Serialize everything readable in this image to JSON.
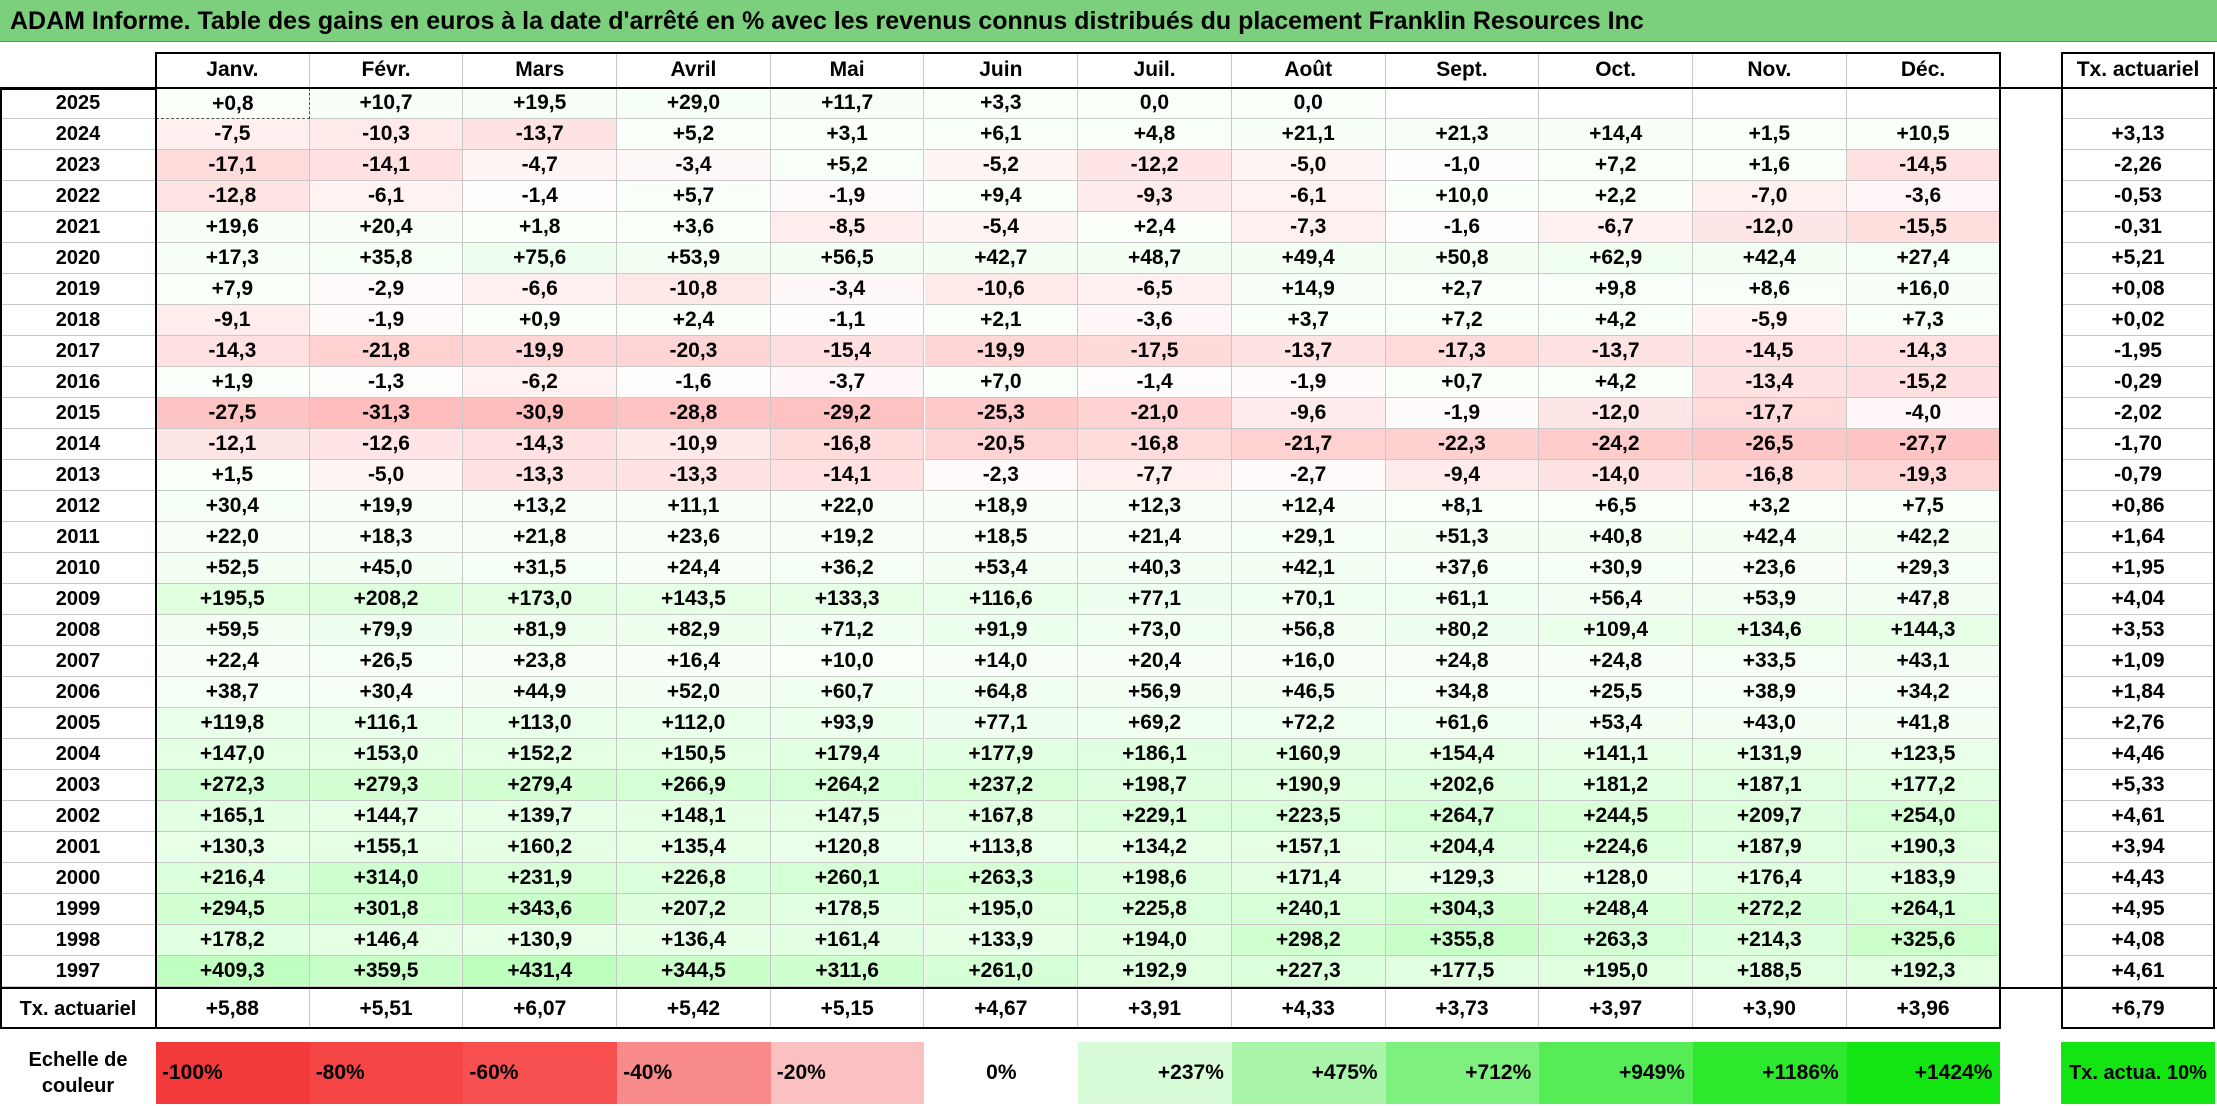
{
  "title": "ADAM Informe. Table des gains en euros à la date d'arrêté en % avec les revenus connus distribués du placement Franklin Resources Inc",
  "chart_data": {
    "type": "table",
    "columns": [
      "Janv.",
      "Févr.",
      "Mars",
      "Avril",
      "Mai",
      "Juin",
      "Juil.",
      "Août",
      "Sept.",
      "Oct.",
      "Nov.",
      "Déc."
    ],
    "rate_header": "Tx. actuariel",
    "rows": [
      {
        "year": "2025",
        "values": [
          "+0,8",
          "+10,7",
          "+19,5",
          "+29,0",
          "+11,7",
          "+3,3",
          "0,0",
          "0,0",
          "",
          "",
          "",
          ""
        ],
        "rate": ""
      },
      {
        "year": "2024",
        "values": [
          "-7,5",
          "-10,3",
          "-13,7",
          "+5,2",
          "+3,1",
          "+6,1",
          "+4,8",
          "+21,1",
          "+21,3",
          "+14,4",
          "+1,5",
          "+10,5"
        ],
        "rate": "+3,13"
      },
      {
        "year": "2023",
        "values": [
          "-17,1",
          "-14,1",
          "-4,7",
          "-3,4",
          "+5,2",
          "-5,2",
          "-12,2",
          "-5,0",
          "-1,0",
          "+7,2",
          "+1,6",
          "-14,5"
        ],
        "rate": "-2,26"
      },
      {
        "year": "2022",
        "values": [
          "-12,8",
          "-6,1",
          "-1,4",
          "+5,7",
          "-1,9",
          "+9,4",
          "-9,3",
          "-6,1",
          "+10,0",
          "+2,2",
          "-7,0",
          "-3,6"
        ],
        "rate": "-0,53"
      },
      {
        "year": "2021",
        "values": [
          "+19,6",
          "+20,4",
          "+1,8",
          "+3,6",
          "-8,5",
          "-5,4",
          "+2,4",
          "-7,3",
          "-1,6",
          "-6,7",
          "-12,0",
          "-15,5"
        ],
        "rate": "-0,31"
      },
      {
        "year": "2020",
        "values": [
          "+17,3",
          "+35,8",
          "+75,6",
          "+53,9",
          "+56,5",
          "+42,7",
          "+48,7",
          "+49,4",
          "+50,8",
          "+62,9",
          "+42,4",
          "+27,4"
        ],
        "rate": "+5,21"
      },
      {
        "year": "2019",
        "values": [
          "+7,9",
          "-2,9",
          "-6,6",
          "-10,8",
          "-3,4",
          "-10,6",
          "-6,5",
          "+14,9",
          "+2,7",
          "+9,8",
          "+8,6",
          "+16,0"
        ],
        "rate": "+0,08"
      },
      {
        "year": "2018",
        "values": [
          "-9,1",
          "-1,9",
          "+0,9",
          "+2,4",
          "-1,1",
          "+2,1",
          "-3,6",
          "+3,7",
          "+7,2",
          "+4,2",
          "-5,9",
          "+7,3"
        ],
        "rate": "+0,02"
      },
      {
        "year": "2017",
        "values": [
          "-14,3",
          "-21,8",
          "-19,9",
          "-20,3",
          "-15,4",
          "-19,9",
          "-17,5",
          "-13,7",
          "-17,3",
          "-13,7",
          "-14,5",
          "-14,3"
        ],
        "rate": "-1,95"
      },
      {
        "year": "2016",
        "values": [
          "+1,9",
          "-1,3",
          "-6,2",
          "-1,6",
          "-3,7",
          "+7,0",
          "-1,4",
          "-1,9",
          "+0,7",
          "+4,2",
          "-13,4",
          "-15,2"
        ],
        "rate": "-0,29"
      },
      {
        "year": "2015",
        "values": [
          "-27,5",
          "-31,3",
          "-30,9",
          "-28,8",
          "-29,2",
          "-25,3",
          "-21,0",
          "-9,6",
          "-1,9",
          "-12,0",
          "-17,7",
          "-4,0"
        ],
        "rate": "-2,02"
      },
      {
        "year": "2014",
        "values": [
          "-12,1",
          "-12,6",
          "-14,3",
          "-10,9",
          "-16,8",
          "-20,5",
          "-16,8",
          "-21,7",
          "-22,3",
          "-24,2",
          "-26,5",
          "-27,7"
        ],
        "rate": "-1,70"
      },
      {
        "year": "2013",
        "values": [
          "+1,5",
          "-5,0",
          "-13,3",
          "-13,3",
          "-14,1",
          "-2,3",
          "-7,7",
          "-2,7",
          "-9,4",
          "-14,0",
          "-16,8",
          "-19,3"
        ],
        "rate": "-0,79"
      },
      {
        "year": "2012",
        "values": [
          "+30,4",
          "+19,9",
          "+13,2",
          "+11,1",
          "+22,0",
          "+18,9",
          "+12,3",
          "+12,4",
          "+8,1",
          "+6,5",
          "+3,2",
          "+7,5"
        ],
        "rate": "+0,86"
      },
      {
        "year": "2011",
        "values": [
          "+22,0",
          "+18,3",
          "+21,8",
          "+23,6",
          "+19,2",
          "+18,5",
          "+21,4",
          "+29,1",
          "+51,3",
          "+40,8",
          "+42,4",
          "+42,2"
        ],
        "rate": "+1,64"
      },
      {
        "year": "2010",
        "values": [
          "+52,5",
          "+45,0",
          "+31,5",
          "+24,4",
          "+36,2",
          "+53,4",
          "+40,3",
          "+42,1",
          "+37,6",
          "+30,9",
          "+23,6",
          "+29,3"
        ],
        "rate": "+1,95"
      },
      {
        "year": "2009",
        "values": [
          "+195,5",
          "+208,2",
          "+173,0",
          "+143,5",
          "+133,3",
          "+116,6",
          "+77,1",
          "+70,1",
          "+61,1",
          "+56,4",
          "+53,9",
          "+47,8"
        ],
        "rate": "+4,04"
      },
      {
        "year": "2008",
        "values": [
          "+59,5",
          "+79,9",
          "+81,9",
          "+82,9",
          "+71,2",
          "+91,9",
          "+73,0",
          "+56,8",
          "+80,2",
          "+109,4",
          "+134,6",
          "+144,3"
        ],
        "rate": "+3,53"
      },
      {
        "year": "2007",
        "values": [
          "+22,4",
          "+26,5",
          "+23,8",
          "+16,4",
          "+10,0",
          "+14,0",
          "+20,4",
          "+16,0",
          "+24,8",
          "+24,8",
          "+33,5",
          "+43,1"
        ],
        "rate": "+1,09"
      },
      {
        "year": "2006",
        "values": [
          "+38,7",
          "+30,4",
          "+44,9",
          "+52,0",
          "+60,7",
          "+64,8",
          "+56,9",
          "+46,5",
          "+34,8",
          "+25,5",
          "+38,9",
          "+34,2"
        ],
        "rate": "+1,84"
      },
      {
        "year": "2005",
        "values": [
          "+119,8",
          "+116,1",
          "+113,0",
          "+112,0",
          "+93,9",
          "+77,1",
          "+69,2",
          "+72,2",
          "+61,6",
          "+53,4",
          "+43,0",
          "+41,8"
        ],
        "rate": "+2,76"
      },
      {
        "year": "2004",
        "values": [
          "+147,0",
          "+153,0",
          "+152,2",
          "+150,5",
          "+179,4",
          "+177,9",
          "+186,1",
          "+160,9",
          "+154,4",
          "+141,1",
          "+131,9",
          "+123,5"
        ],
        "rate": "+4,46"
      },
      {
        "year": "2003",
        "values": [
          "+272,3",
          "+279,3",
          "+279,4",
          "+266,9",
          "+264,2",
          "+237,2",
          "+198,7",
          "+190,9",
          "+202,6",
          "+181,2",
          "+187,1",
          "+177,2"
        ],
        "rate": "+5,33"
      },
      {
        "year": "2002",
        "values": [
          "+165,1",
          "+144,7",
          "+139,7",
          "+148,1",
          "+147,5",
          "+167,8",
          "+229,1",
          "+223,5",
          "+264,7",
          "+244,5",
          "+209,7",
          "+254,0"
        ],
        "rate": "+4,61"
      },
      {
        "year": "2001",
        "values": [
          "+130,3",
          "+155,1",
          "+160,2",
          "+135,4",
          "+120,8",
          "+113,8",
          "+134,2",
          "+157,1",
          "+204,4",
          "+224,6",
          "+187,9",
          "+190,3"
        ],
        "rate": "+3,94"
      },
      {
        "year": "2000",
        "values": [
          "+216,4",
          "+314,0",
          "+231,9",
          "+226,8",
          "+260,1",
          "+263,3",
          "+198,6",
          "+171,4",
          "+129,3",
          "+128,0",
          "+176,4",
          "+183,9"
        ],
        "rate": "+4,43"
      },
      {
        "year": "1999",
        "values": [
          "+294,5",
          "+301,8",
          "+343,6",
          "+207,2",
          "+178,5",
          "+195,0",
          "+225,8",
          "+240,1",
          "+304,3",
          "+248,4",
          "+272,2",
          "+264,1"
        ],
        "rate": "+4,95"
      },
      {
        "year": "1998",
        "values": [
          "+178,2",
          "+146,4",
          "+130,9",
          "+136,4",
          "+161,4",
          "+133,9",
          "+194,0",
          "+298,2",
          "+355,8",
          "+263,3",
          "+214,3",
          "+325,6"
        ],
        "rate": "+4,08"
      },
      {
        "year": "1997",
        "values": [
          "+409,3",
          "+359,5",
          "+431,4",
          "+344,5",
          "+311,6",
          "+261,0",
          "+192,9",
          "+227,3",
          "+177,5",
          "+195,0",
          "+188,5",
          "+192,3"
        ],
        "rate": "+4,61"
      }
    ],
    "summary": {
      "label": "Tx. actuariel",
      "values": [
        "+5,88",
        "+5,51",
        "+6,07",
        "+5,42",
        "+5,15",
        "+4,67",
        "+3,91",
        "+4,33",
        "+3,73",
        "+3,97",
        "+3,90",
        "+3,96"
      ],
      "rate": "+6,79"
    },
    "legend": {
      "label": "Echelle de couleur",
      "items": [
        {
          "text": "-100%",
          "color": "#f23a3a"
        },
        {
          "text": "-80%",
          "color": "#f54545"
        },
        {
          "text": "-60%",
          "color": "#f85050"
        },
        {
          "text": "-40%",
          "color": "#f88a8a"
        },
        {
          "text": "-20%",
          "color": "#fbc0c0"
        },
        {
          "text": "0%",
          "color": "#ffffff"
        },
        {
          "text": "+237%",
          "color": "#d8fbd8"
        },
        {
          "text": "+475%",
          "color": "#a9f5a9"
        },
        {
          "text": "+712%",
          "color": "#7ef07e"
        },
        {
          "text": "+949%",
          "color": "#55ec55"
        },
        {
          "text": "+1186%",
          "color": "#2de82d"
        },
        {
          "text": "+1424%",
          "color": "#12e512"
        }
      ],
      "rate_box": {
        "text": "Tx. actua. 10%",
        "color": "#12e512"
      }
    }
  }
}
